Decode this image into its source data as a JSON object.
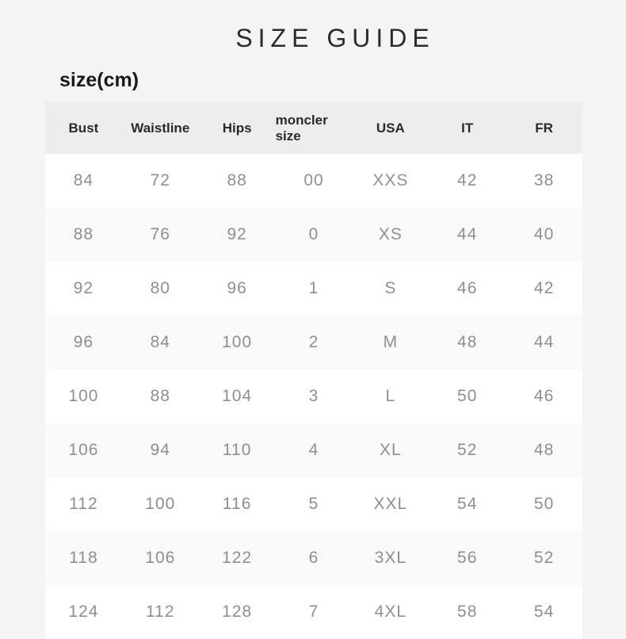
{
  "page": {
    "title": "SIZE GUIDE",
    "unit_label": "size(cm)"
  },
  "colors": {
    "page_bg": "#f4f4f4",
    "header_bg": "#ededed",
    "row_odd_bg": "#ffffff",
    "row_even_bg": "#f9f9f9",
    "title_color": "#2b2b2b",
    "header_text": "#2a2a2a",
    "cell_text": "#8f8f8f"
  },
  "table": {
    "headers": [
      "Bust",
      "Waistline",
      "Hips",
      "moncler size",
      "USA",
      "IT",
      "FR"
    ],
    "rows": [
      [
        "84",
        "72",
        "88",
        "00",
        "XXS",
        "42",
        "38"
      ],
      [
        "88",
        "76",
        "92",
        "0",
        "XS",
        "44",
        "40"
      ],
      [
        "92",
        "80",
        "96",
        "1",
        "S",
        "46",
        "42"
      ],
      [
        "96",
        "84",
        "100",
        "2",
        "M",
        "48",
        "44"
      ],
      [
        "100",
        "88",
        "104",
        "3",
        "L",
        "50",
        "46"
      ],
      [
        "106",
        "94",
        "110",
        "4",
        "XL",
        "52",
        "48"
      ],
      [
        "112",
        "100",
        "116",
        "5",
        "XXL",
        "54",
        "50"
      ],
      [
        "118",
        "106",
        "122",
        "6",
        "3XL",
        "56",
        "52"
      ],
      [
        "124",
        "112",
        "128",
        "7",
        "4XL",
        "58",
        "54"
      ]
    ]
  }
}
